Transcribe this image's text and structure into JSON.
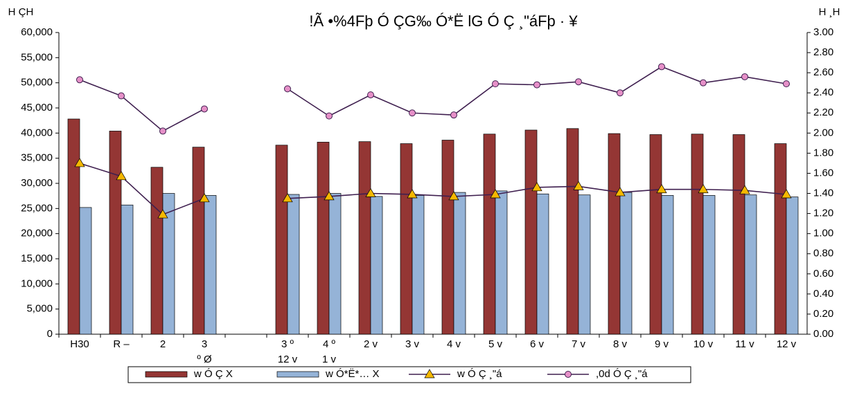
{
  "chart_data": {
    "type": "bar",
    "title": "!Ã •%4Fþ Ó ÇG‰ Ó*Ë lG  Ó Ç ¸\"áFþ · ¥",
    "y_label": "H ÇH",
    "y2_label": "H ¸H",
    "categories": [
      "H30",
      "R –",
      "2",
      "3\nº Ø",
      null,
      "3 º\n12 v",
      "4 º\n1 v",
      "2 v",
      "3 v",
      "4 v",
      "5 v",
      "6 v",
      "7 v",
      "8 v",
      "9 v",
      "10 v",
      "11 v",
      "12 v"
    ],
    "series": [
      {
        "name": "w  Ó Ç X",
        "type": "bar",
        "color": "#943634",
        "values": [
          42800,
          40400,
          33200,
          37200,
          null,
          37600,
          38200,
          38300,
          37900,
          38600,
          39800,
          40600,
          40900,
          39900,
          39700,
          39800,
          39700,
          37900
        ]
      },
      {
        "name": "w  Ó*Ë*… X",
        "type": "bar",
        "color": "#95b3d7",
        "values": [
          25200,
          25700,
          28000,
          27600,
          null,
          27800,
          28000,
          27400,
          27600,
          28200,
          28500,
          27900,
          27700,
          28200,
          27600,
          27600,
          27700,
          27300
        ]
      },
      {
        "name": "w  Ó Ç ¸\"á",
        "type": "line",
        "marker": "triangle",
        "axis": "y2",
        "color": "#3f1f4f",
        "marker_color": "#f5b800",
        "values": [
          1.7,
          1.57,
          1.19,
          1.35,
          null,
          1.35,
          1.37,
          1.4,
          1.39,
          1.37,
          1.39,
          1.46,
          1.47,
          1.41,
          1.44,
          1.44,
          1.43,
          1.39
        ]
      },
      {
        "name": ",0d Ó Ç ¸\"á",
        "type": "line",
        "marker": "circle",
        "axis": "y2",
        "color": "#3f1f4f",
        "marker_color": "#e690c8",
        "values": [
          2.53,
          2.37,
          2.02,
          2.24,
          null,
          2.44,
          2.17,
          2.38,
          2.2,
          2.18,
          2.49,
          2.48,
          2.51,
          2.4,
          2.66,
          2.5,
          2.56,
          2.49
        ]
      }
    ],
    "ylim": [
      0,
      60000
    ],
    "yticks": [
      0,
      {
        "value": 5000,
        "label": "5,000"
      },
      {
        "value": 10000,
        "label": "10,000"
      },
      {
        "value": 15000,
        "label": "15,000"
      },
      {
        "value": 20000,
        "label": "20,000"
      },
      {
        "value": 25000,
        "label": "25,000"
      },
      {
        "value": 30000,
        "label": "30,000"
      },
      {
        "value": 35000,
        "label": "35,000"
      },
      {
        "value": 40000,
        "label": "40,000"
      },
      {
        "value": 45000,
        "label": "45,000"
      },
      {
        "value": 50000,
        "label": "50,000"
      },
      {
        "value": 55000,
        "label": "55,000"
      },
      {
        "value": 60000,
        "label": "60,000"
      }
    ],
    "y2lim": [
      0,
      3
    ],
    "y2ticks": [
      {
        "value": 0,
        "label": "0.00"
      },
      {
        "value": 0.2,
        "label": "0.20"
      },
      {
        "value": 0.4,
        "label": "0.40"
      },
      {
        "value": 0.6,
        "label": "0.60"
      },
      {
        "value": 0.8,
        "label": "0.80"
      },
      {
        "value": 1.0,
        "label": "1.00"
      },
      {
        "value": 1.2,
        "label": "1.20"
      },
      {
        "value": 1.4,
        "label": "1.40"
      },
      {
        "value": 1.6,
        "label": "1.60"
      },
      {
        "value": 1.8,
        "label": "1.80"
      },
      {
        "value": 2.0,
        "label": "2.00"
      },
      {
        "value": 2.2,
        "label": "2.20"
      },
      {
        "value": 2.4,
        "label": "2.40"
      },
      {
        "value": 2.6,
        "label": "2.60"
      },
      {
        "value": 2.8,
        "label": "2.80"
      },
      {
        "value": 3.0,
        "label": "3.00"
      }
    ],
    "grid": false,
    "legend": "bottom"
  }
}
